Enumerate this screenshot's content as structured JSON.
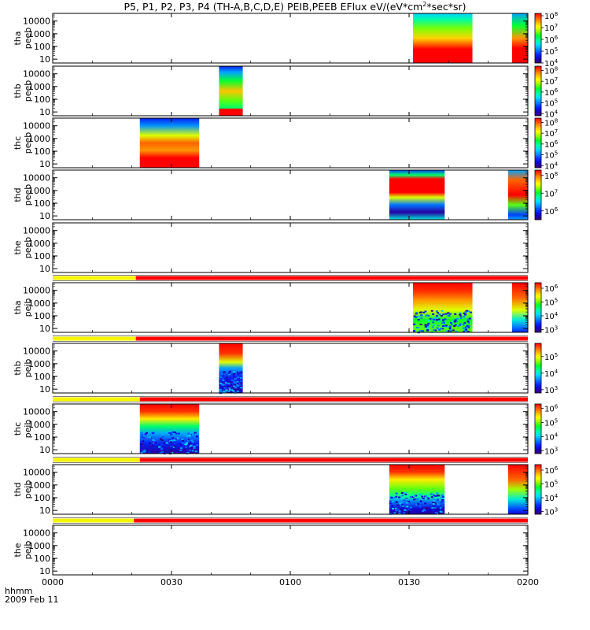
{
  "title": {
    "prefix": "P5, P1, P2, P3, P4 (TH-A,B,C,D,E) PEIB,PEEB EFlux eV/(eV*cm",
    "sup": "2",
    "suffix": "*sec*sr)"
  },
  "x_footer": {
    "label": "hhmm",
    "date": "2009 Feb 11"
  },
  "colors": {
    "yellow": "#f5f500",
    "red": "#ff0000"
  },
  "chart_data": {
    "type": "heatmap",
    "x_axis": {
      "min_minutes": 0,
      "max_minutes": 120,
      "tick_minutes": [
        0,
        30,
        60,
        90,
        120
      ],
      "tick_labels": [
        "0000",
        "0030",
        "0100",
        "0130",
        "0200"
      ]
    },
    "y_tick_labels": [
      "10000",
      "1000",
      "100",
      "10"
    ],
    "y_tick_values": [
      10000,
      1000,
      100,
      10
    ],
    "panels": [
      {
        "probe": "tha",
        "product": "peeb",
        "ylim": [
          5,
          40000
        ],
        "colorbar": {
          "labels": [
            "10^8",
            "10^7",
            "10^6",
            "10^5",
            "10^4"
          ],
          "exps": [
            8,
            7,
            6,
            5,
            4
          ],
          "min": 4,
          "max": 8.2
        },
        "blocks": [
          {
            "start": 91,
            "end": 106,
            "style": "tha_e"
          },
          {
            "start": 116,
            "end": 120,
            "style": "tha_e_edge"
          }
        ]
      },
      {
        "probe": "thb",
        "product": "peeb",
        "ylim": [
          5,
          40000
        ],
        "colorbar": {
          "labels": [
            "10^8",
            "10^7",
            "10^6",
            "10^5",
            "10^4"
          ],
          "exps": [
            8,
            7,
            6,
            5,
            4
          ],
          "min": 3.8,
          "max": 8.4
        },
        "blocks": [
          {
            "start": 42,
            "end": 48,
            "style": "thb_e"
          }
        ]
      },
      {
        "probe": "thc",
        "product": "peeb",
        "ylim": [
          5,
          40000
        ],
        "colorbar": {
          "labels": [
            "10^8",
            "10^7",
            "10^6",
            "10^5",
            "10^4"
          ],
          "exps": [
            8,
            7,
            6,
            5,
            4
          ],
          "min": 3.8,
          "max": 8.4
        },
        "blocks": [
          {
            "start": 22,
            "end": 37,
            "style": "thc_e"
          }
        ]
      },
      {
        "probe": "thd",
        "product": "peeb",
        "ylim": [
          5,
          40000
        ],
        "colorbar": {
          "labels": [
            "10^8",
            "10^7",
            "10^6"
          ],
          "exps": [
            8,
            7,
            6
          ],
          "min": 5.5,
          "max": 8.3
        },
        "blocks": [
          {
            "start": 85,
            "end": 99,
            "style": "thd_e"
          },
          {
            "start": 115,
            "end": 120,
            "style": "thd_e_edge"
          }
        ]
      },
      {
        "probe": "the",
        "product": "peeb",
        "ylim": [
          5,
          40000
        ],
        "colorbar": null,
        "blocks": []
      },
      {
        "probe": "tha",
        "product": "peib",
        "ylim": [
          5,
          40000
        ],
        "colorbar": {
          "labels": [
            "10^6",
            "10^5",
            "10^4",
            "10^3"
          ],
          "exps": [
            6,
            5,
            4,
            3
          ],
          "min": 2.8,
          "max": 6.4
        },
        "blocks": [
          {
            "start": 91,
            "end": 106,
            "style": "tha_i"
          },
          {
            "start": 116,
            "end": 120,
            "style": "tha_i_edge"
          }
        ]
      },
      {
        "probe": "thb",
        "product": "peib",
        "ylim": [
          5,
          40000
        ],
        "colorbar": {
          "labels": [
            "10^5",
            "10^4",
            "10^3"
          ],
          "exps": [
            5,
            4,
            3
          ],
          "min": 2.8,
          "max": 5.8
        },
        "blocks": [
          {
            "start": 42,
            "end": 48,
            "style": "thb_i"
          }
        ]
      },
      {
        "probe": "thc",
        "product": "peib",
        "ylim": [
          5,
          40000
        ],
        "colorbar": {
          "labels": [
            "10^6",
            "10^5",
            "10^4",
            "10^3"
          ],
          "exps": [
            6,
            5,
            4,
            3
          ],
          "min": 2.8,
          "max": 6.3
        },
        "blocks": [
          {
            "start": 22,
            "end": 37,
            "style": "thc_i"
          }
        ]
      },
      {
        "probe": "thd",
        "product": "peib",
        "ylim": [
          5,
          40000
        ],
        "colorbar": {
          "labels": [
            "10^6",
            "10^5",
            "10^4",
            "10^3"
          ],
          "exps": [
            6,
            5,
            4,
            3
          ],
          "min": 2.8,
          "max": 6.4
        },
        "blocks": [
          {
            "start": 85,
            "end": 99,
            "style": "thd_i"
          },
          {
            "start": 115,
            "end": 120,
            "style": "thd_i_edge"
          }
        ]
      },
      {
        "probe": "the",
        "product": "peib",
        "ylim": [
          5,
          40000
        ],
        "colorbar": null,
        "blocks": []
      }
    ],
    "mode_bars": [
      {
        "above_panel": 5,
        "yellow_end": 21,
        "red_end": 120
      },
      {
        "above_panel": 6,
        "yellow_end": 21,
        "red_end": 120
      },
      {
        "above_panel": 7,
        "yellow_end": 22,
        "red_end": 120
      },
      {
        "above_panel": 8,
        "yellow_end": 22,
        "red_end": 120
      },
      {
        "above_panel": 9,
        "yellow_end": 20.5,
        "red_end": 120
      }
    ]
  }
}
